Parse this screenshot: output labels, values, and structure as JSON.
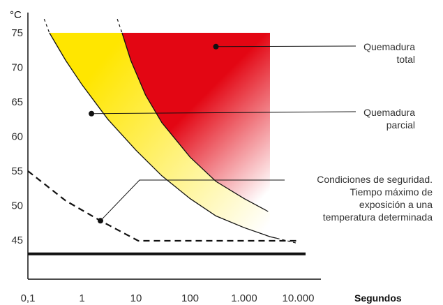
{
  "chart_data": {
    "type": "area",
    "title": "",
    "y_unit_label": "°C",
    "xlabel": "Segundos",
    "x_scale": "log",
    "xlim": [
      0.1,
      10000
    ],
    "ylim": [
      42,
      77
    ],
    "x_ticks": [
      {
        "value": 0.1,
        "label": "0,1"
      },
      {
        "value": 1,
        "label": "1"
      },
      {
        "value": 10,
        "label": "10"
      },
      {
        "value": 100,
        "label": "100"
      },
      {
        "value": 1000,
        "label": "1.000"
      },
      {
        "value": 10000,
        "label": "10.000"
      }
    ],
    "y_ticks": [
      {
        "value": 45,
        "label": "45"
      },
      {
        "value": 50,
        "label": "50"
      },
      {
        "value": 55,
        "label": "55"
      },
      {
        "value": 60,
        "label": "60"
      },
      {
        "value": 65,
        "label": "65"
      },
      {
        "value": 70,
        "label": "70"
      },
      {
        "value": 75,
        "label": "75"
      }
    ],
    "reference_line": {
      "y": 43,
      "style": "solid-thick"
    },
    "curves": [
      {
        "id": "partial-burn-threshold",
        "style": "solid",
        "points": [
          [
            0.2,
            77
          ],
          [
            0.25,
            75
          ],
          [
            0.5,
            71
          ],
          [
            1,
            67.5
          ],
          [
            3,
            62.5
          ],
          [
            10,
            58
          ],
          [
            30,
            54.3
          ],
          [
            100,
            51
          ],
          [
            300,
            48.5
          ],
          [
            1000,
            46.8
          ],
          [
            3000,
            45.5
          ],
          [
            10000,
            44.5
          ]
        ]
      },
      {
        "id": "total-burn-threshold",
        "style": "solid",
        "points": [
          [
            4.5,
            77
          ],
          [
            5.5,
            75
          ],
          [
            8,
            71
          ],
          [
            15,
            66
          ],
          [
            30,
            62
          ],
          [
            100,
            57
          ],
          [
            300,
            53.5
          ],
          [
            1000,
            51
          ],
          [
            3000,
            49
          ]
        ]
      },
      {
        "id": "safety-limit",
        "style": "dashed",
        "points": [
          [
            0.1,
            55
          ],
          [
            0.5,
            50.7
          ],
          [
            2.2,
            47.8
          ],
          [
            11,
            44.9
          ],
          [
            10000,
            44.9
          ]
        ]
      }
    ],
    "regions": [
      {
        "id": "partial-burn-zone",
        "color": "#ffe600",
        "fade_to": "#ffffff"
      },
      {
        "id": "total-burn-zone",
        "color": "#e30613",
        "fade_to": "#ffffff",
        "x_max": 3000,
        "y_max": 75
      }
    ],
    "annotations": [
      {
        "id": "quemadura-total",
        "lines": [
          "Quemadura",
          "total"
        ],
        "anchor": [
          300,
          73
        ]
      },
      {
        "id": "quemadura-parcial",
        "lines": [
          "Quemadura",
          "parcial"
        ],
        "anchor": [
          1.5,
          63.3
        ]
      },
      {
        "id": "condiciones-seguridad",
        "lines": [
          "Condiciones de seguridad.",
          "Tiempo máximo de",
          "exposición a una",
          "temperatura determinada"
        ],
        "anchor": [
          2.2,
          47.8
        ]
      }
    ]
  }
}
